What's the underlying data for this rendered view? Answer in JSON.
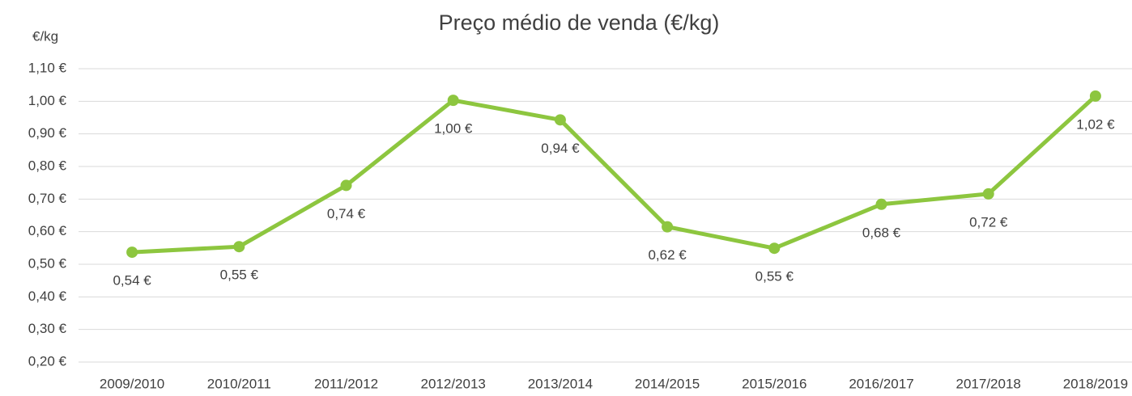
{
  "chart_data": {
    "type": "line",
    "title": "Preço médio de venda (€/kg)",
    "y_axis_label": "€/kg",
    "categories": [
      "2009/2010",
      "2010/2011",
      "2011/2012",
      "2012/2013",
      "2013/2014",
      "2014/2015",
      "2015/2016",
      "2016/2017",
      "2017/2018",
      "2018/2019"
    ],
    "series": [
      {
        "name": "Preço médio de venda",
        "color": "#8dc63f",
        "values": [
          0.537,
          0.554,
          0.742,
          1.003,
          0.943,
          0.615,
          0.549,
          0.684,
          0.716,
          1.016
        ],
        "value_labels": [
          "0,54 €",
          "0,55 €",
          "0,74 €",
          "1,00 €",
          "0,94 €",
          "0,62 €",
          "0,55 €",
          "0,68 €",
          "0,72 €",
          "1,02 €"
        ]
      }
    ],
    "ylim": [
      0.2,
      1.1
    ],
    "yticks": [
      {
        "value": 0.2,
        "label": "0,20 €"
      },
      {
        "value": 0.3,
        "label": "0,30 €"
      },
      {
        "value": 0.4,
        "label": "0,40 €"
      },
      {
        "value": 0.5,
        "label": "0,50 €"
      },
      {
        "value": 0.6,
        "label": "0,60 €"
      },
      {
        "value": 0.7,
        "label": "0,70 €"
      },
      {
        "value": 0.8,
        "label": "0,80 €"
      },
      {
        "value": 0.9,
        "label": "0,90 €"
      },
      {
        "value": 1.0,
        "label": "1,00 €"
      },
      {
        "value": 1.1,
        "label": "1,10 €"
      }
    ],
    "grid": true
  }
}
